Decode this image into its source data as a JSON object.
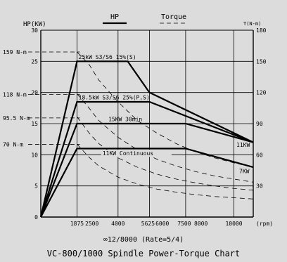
{
  "chart_data": {
    "type": "line",
    "title": "VC-800/1000 Spindle Power-Torque Chart",
    "subtitle": "∞12/8000 (Rate=5/4)",
    "legend": [
      "HP",
      "Torque"
    ],
    "left_axis": {
      "label": "HP(KW)",
      "ylim": [
        0,
        30
      ],
      "ticks": [
        0,
        5,
        10,
        15,
        20,
        25,
        30
      ]
    },
    "right_axis": {
      "label": "T(N-m)",
      "ylim": [
        0,
        180
      ],
      "ticks": [
        30,
        60,
        90,
        120,
        150,
        180
      ]
    },
    "x_axis": {
      "unit": "(rpm)",
      "xlim": [
        0,
        11000
      ],
      "ticks": [
        1875,
        2500,
        4000,
        5625,
        6000,
        7500,
        8000,
        10000
      ]
    },
    "torque_markers": [
      {
        "label": "159 N-m",
        "value": 159
      },
      {
        "label": "118 N-m",
        "value": 118
      },
      {
        "label": "95.5 N-m",
        "value": 95.5
      },
      {
        "label": "70  N-m",
        "value": 70
      }
    ],
    "series": [
      {
        "name": "25kW  S3/S6  15%(S)",
        "x": [
          0,
          1875,
          4500,
          5625,
          11000
        ],
        "y": [
          0,
          25,
          25,
          20,
          12
        ]
      },
      {
        "name": "18.5kW  S3/S6  25%(P,S)",
        "x": [
          0,
          1875,
          5625,
          11000
        ],
        "y": [
          0,
          18.5,
          18.5,
          12
        ]
      },
      {
        "name": "15KW  30min",
        "x": [
          0,
          1875,
          7500,
          11000
        ],
        "y": [
          0,
          15,
          15,
          12
        ]
      },
      {
        "name": "11KW  Continuous",
        "x": [
          0,
          1875,
          7500,
          11000
        ],
        "y": [
          0,
          11,
          11,
          8
        ]
      }
    ],
    "end_labels": [
      "11KW",
      "7KW"
    ],
    "torque_curves": [
      {
        "x": [
          1875,
          2500,
          3000,
          4000,
          5000,
          6000,
          7000,
          8000,
          9000,
          10000,
          11000
        ],
        "y": [
          26.5,
          24.5,
          22,
          18.5,
          15.5,
          13.5,
          11.8,
          10.5,
          9.5,
          8.7,
          8
        ]
      },
      {
        "x": [
          1875,
          2500,
          3000,
          4000,
          5000,
          6000,
          7000,
          8000,
          9000,
          10000,
          11000
        ],
        "y": [
          19.8,
          17.5,
          15.5,
          12.8,
          10.8,
          9.3,
          8.2,
          7.3,
          6.6,
          6.1,
          5.6
        ]
      },
      {
        "x": [
          1875,
          2500,
          3000,
          4000,
          5000,
          6000,
          7000,
          8000,
          9000,
          10000,
          11000
        ],
        "y": [
          16.1,
          13.5,
          11.8,
          9.5,
          8,
          6.9,
          6.1,
          5.5,
          5,
          4.6,
          4.3
        ]
      },
      {
        "x": [
          1875,
          2500,
          3000,
          4000,
          5000,
          6000,
          7000,
          8000,
          9000,
          10000,
          11000
        ],
        "y": [
          11.7,
          9.6,
          8.2,
          6.4,
          5.3,
          4.5,
          4,
          3.6,
          3.3,
          3.1,
          2.9
        ]
      }
    ]
  }
}
